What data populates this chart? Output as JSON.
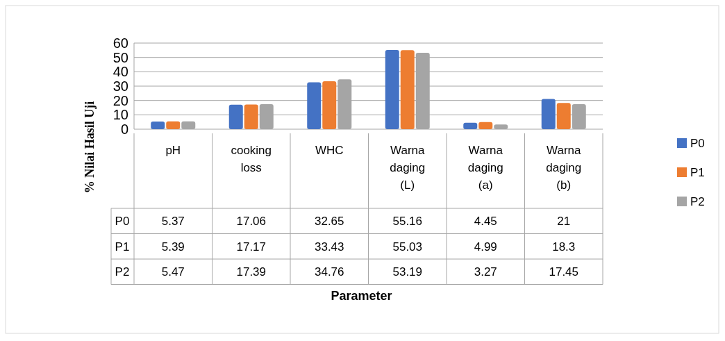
{
  "chart_data": {
    "type": "bar",
    "annotations": [
      "Parameter"
    ],
    "ylabel": "% Nilai Hasil Uji",
    "categories": [
      "pH",
      "cooking loss",
      "WHC",
      "Warna daging (L)",
      "Warna daging (a)",
      "Warna daging (b)"
    ],
    "series": [
      {
        "name": "P0",
        "color": "#4472c4",
        "values": [
          5.37,
          17.06,
          32.65,
          55.16,
          4.45,
          21
        ]
      },
      {
        "name": "P1",
        "color": "#ed7d31",
        "values": [
          5.39,
          17.17,
          33.43,
          55.03,
          4.99,
          18.3
        ]
      },
      {
        "name": "P2",
        "color": "#a5a5a5",
        "values": [
          5.47,
          17.39,
          34.76,
          53.19,
          3.27,
          17.45
        ]
      }
    ],
    "ylim": [
      0,
      60
    ],
    "yticks": [
      0,
      10,
      20,
      30,
      40,
      50,
      60
    ],
    "grid": "y",
    "legend": "right",
    "data_labels": true
  }
}
